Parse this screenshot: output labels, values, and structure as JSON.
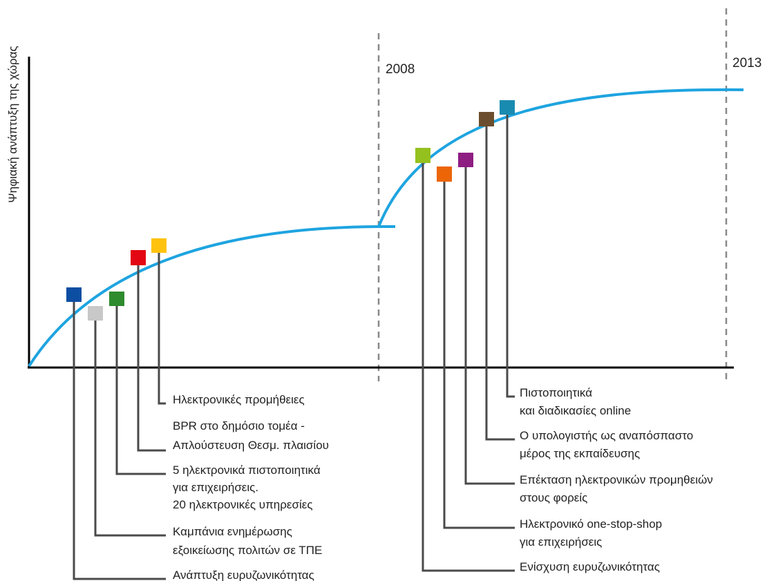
{
  "y_axis_label": "Ψηφιακή ανάπτυξη της χώρας",
  "years": [
    "2008",
    "2013"
  ],
  "colors": {
    "curve": "#1ea4e0",
    "axis": "#000000",
    "leader": "#4a4a4a",
    "divider": "#888888"
  },
  "phase1": {
    "milestones": [
      {
        "id": "m1",
        "color": "#0b4ea2",
        "lines": [
          "Ανάπτυξη ευρυζωνικότητας"
        ]
      },
      {
        "id": "m2",
        "color": "#c8c8c8",
        "lines": [
          "Καμπάνια ενημέρωσης",
          "εξοικείωσης πολιτών σε ΤΠΕ"
        ]
      },
      {
        "id": "m3",
        "color": "#2e8b2e",
        "lines": [
          "5 ηλεκτρονικά πιστοποιητικά",
          "για επιχειρήσεις.",
          "20 ηλεκτρονικές υπηρεσίες"
        ]
      },
      {
        "id": "m4",
        "color": "#e30613",
        "lines": [
          "BPR στο δημόσιο τομέα -",
          "Απλούστευση Θεσμ. πλαισίου"
        ]
      },
      {
        "id": "m5",
        "color": "#ffc20e",
        "lines": [
          "Ηλεκτρονικές προμήθειες"
        ]
      }
    ]
  },
  "phase2": {
    "milestones": [
      {
        "id": "n1",
        "color": "#95c11f",
        "lines": [
          "Ενίσχυση ευρυζωνικότητας"
        ]
      },
      {
        "id": "n2",
        "color": "#ec6608",
        "lines": [
          "Ηλεκτρονικό one-stop-shop",
          "για επιχειρήσεις"
        ]
      },
      {
        "id": "n3",
        "color": "#8e1e82",
        "lines": [
          "Επέκταση ηλεκτρονικών προμηθειών",
          "στους φορείς"
        ]
      },
      {
        "id": "n4",
        "color": "#6b4e2e",
        "lines": [
          "Ο υπολογιστής ως αναπόσπαστο",
          "μέρος της εκπαίδευσης"
        ]
      },
      {
        "id": "n5",
        "color": "#1a8bb0",
        "lines": [
          "Πιστοποιητικά",
          "και διαδικασίες online"
        ]
      }
    ]
  }
}
